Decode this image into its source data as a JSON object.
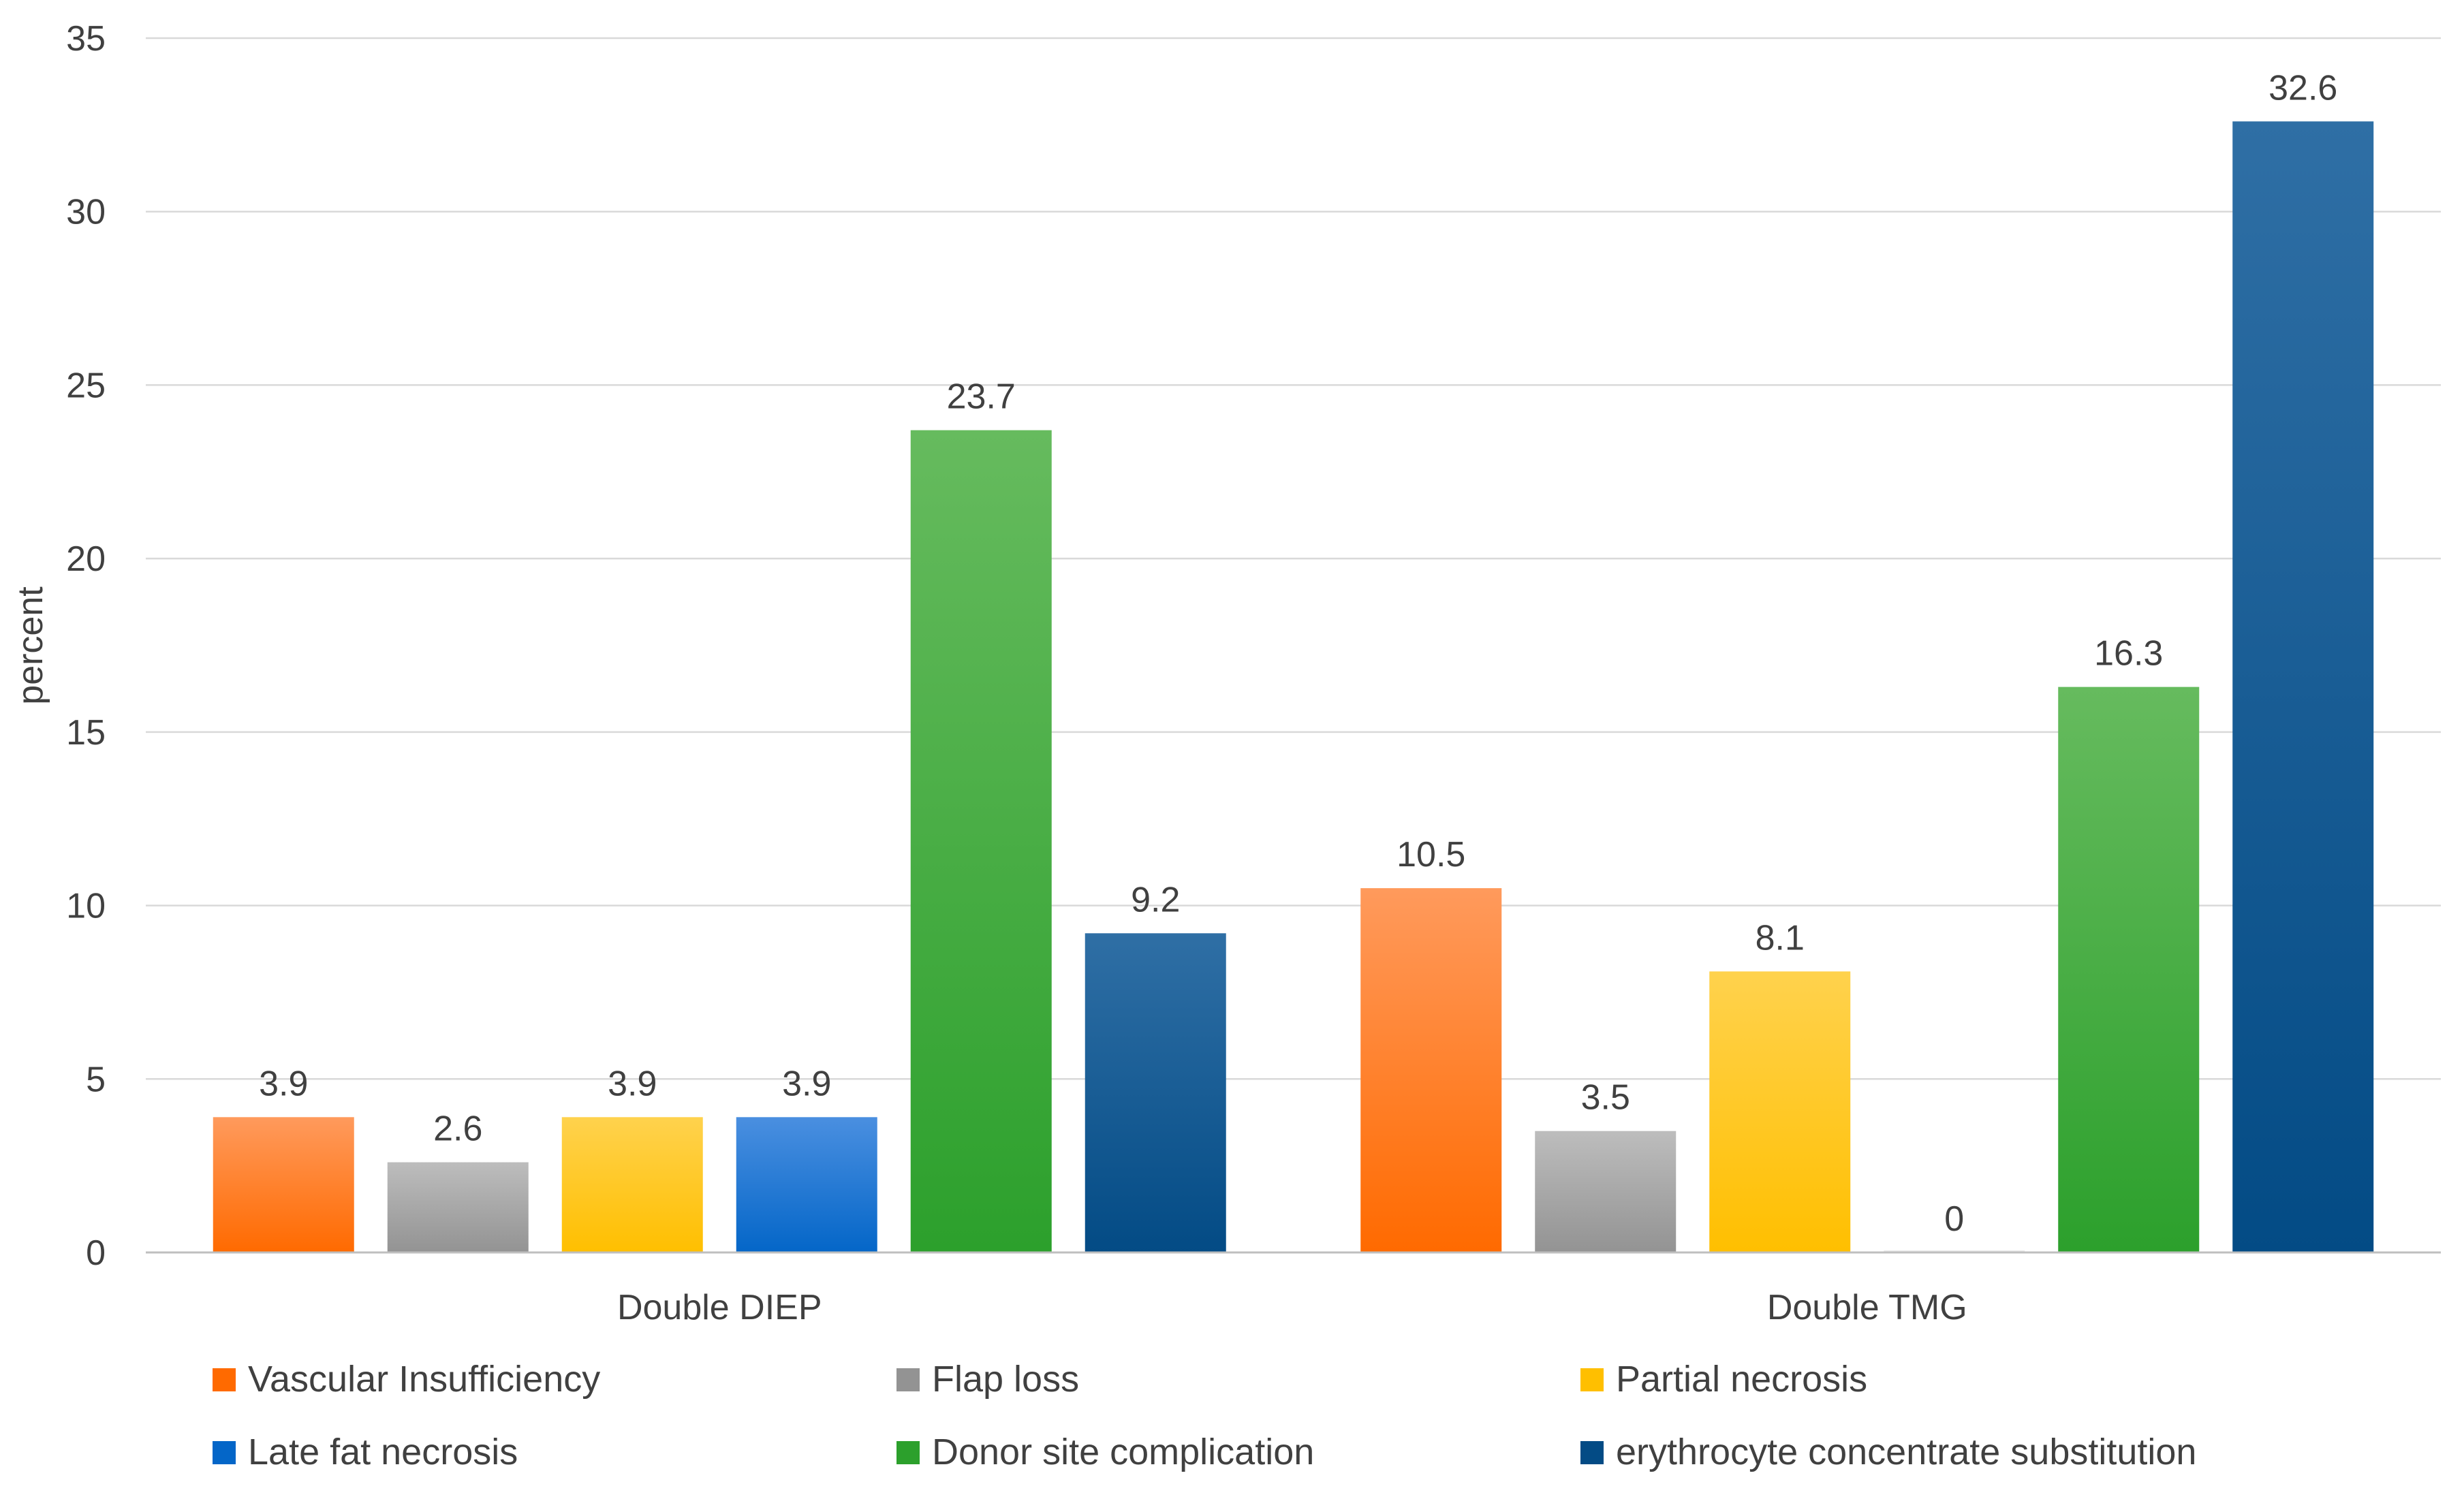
{
  "chart_data": {
    "type": "bar",
    "title": "",
    "xlabel": "",
    "ylabel": "percent",
    "ylim": [
      0,
      35
    ],
    "yticks": [
      0,
      5,
      10,
      15,
      20,
      25,
      30,
      35
    ],
    "grid": true,
    "legend_position": "bottom",
    "categories": [
      "Double DIEP",
      "Double TMG"
    ],
    "series": [
      {
        "name": "Vascular Insufficiency",
        "values": [
          3.9,
          10.5
        ],
        "labels": [
          "3.9",
          "10.5"
        ],
        "color": "#ff6a00",
        "color_light": "#ff9a5c"
      },
      {
        "name": "Flap loss",
        "values": [
          2.6,
          3.5
        ],
        "labels": [
          "2.6",
          "3.5"
        ],
        "color": "#939393",
        "color_light": "#bdbdbd"
      },
      {
        "name": "Partial necrosis",
        "values": [
          3.9,
          8.1
        ],
        "labels": [
          "3.9",
          "8.1"
        ],
        "color": "#ffbf00",
        "color_light": "#ffd24d"
      },
      {
        "name": "Late fat necrosis",
        "values": [
          3.9,
          0
        ],
        "labels": [
          "3.9",
          "0"
        ],
        "color": "#0466c8",
        "color_light": "#4a8fe0"
      },
      {
        "name": "Donor site complication",
        "values": [
          23.7,
          16.3
        ],
        "labels": [
          "23.7",
          "16.3"
        ],
        "color": "#2ca02c",
        "color_light": "#66bb5e"
      },
      {
        "name": "erythrocyte concentrate substitution",
        "values": [
          9.2,
          32.6
        ],
        "labels": [
          "9.2",
          "32.6"
        ],
        "color": "#034b85",
        "color_light": "#2f6fa5"
      }
    ]
  }
}
